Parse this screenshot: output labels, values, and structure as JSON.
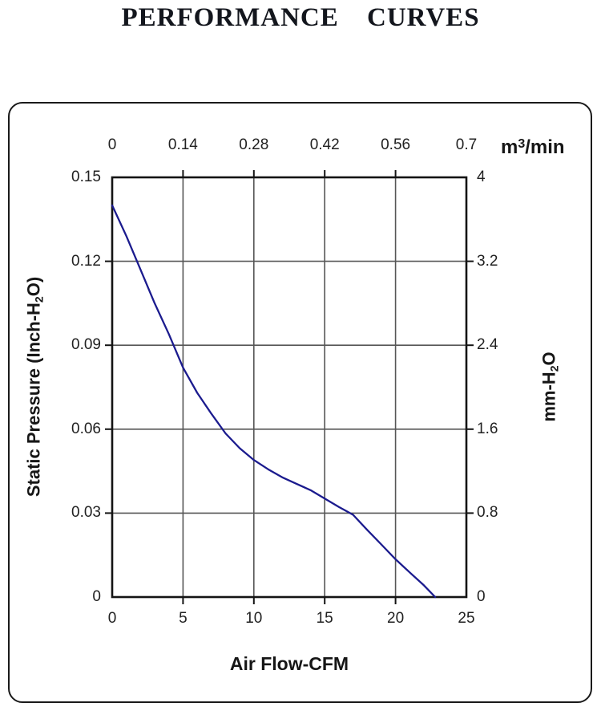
{
  "page": {
    "title": "PERFORMANCE CURVES"
  },
  "chart": {
    "top_axis": {
      "ticks": [
        "0",
        "0.14",
        "0.28",
        "0.42",
        "0.56",
        "0.7"
      ],
      "unit_prefix": "m",
      "unit_sup": "3",
      "unit_suffix": "/min"
    },
    "bottom_axis": {
      "ticks": [
        "0",
        "5",
        "10",
        "15",
        "20",
        "25"
      ],
      "title": "Air Flow-CFM"
    },
    "left_axis": {
      "ticks": [
        "0.15",
        "0.12",
        "0.09",
        "0.06",
        "0.03",
        "0"
      ],
      "title_pre": "Static Pressure (Inch-H",
      "title_sub": "2",
      "title_post": "O)"
    },
    "right_axis": {
      "ticks": [
        "4",
        "3.2",
        "2.4",
        "1.6",
        "0.8",
        "0"
      ],
      "title_pre": "mm-H",
      "title_sub": "2",
      "title_post": "O"
    },
    "colors": {
      "curve": "#1b1b8e",
      "frame": "#141414",
      "grid": "#565656",
      "text": "#212121",
      "box_border": "#1a1a1a",
      "background": "#ffffff"
    }
  },
  "chart_data": {
    "type": "line",
    "title": "PERFORMANCE CURVES",
    "xlabel": "Air Flow-CFM",
    "xlabel_top": "m3/min",
    "ylabel_left": "Static Pressure (Inch-H2O)",
    "ylabel_right": "mm-H2O",
    "xlim": [
      0,
      25
    ],
    "ylim": [
      0,
      0.15
    ],
    "xlim_top": [
      0,
      0.7
    ],
    "ylim_right": [
      0,
      4
    ],
    "grid": true,
    "legend": false,
    "series": [
      {
        "name": "static-pressure-vs-airflow",
        "points": [
          [
            0,
            0.14
          ],
          [
            1,
            0.129
          ],
          [
            2,
            0.117
          ],
          [
            3,
            0.105
          ],
          [
            4,
            0.094
          ],
          [
            5,
            0.082
          ],
          [
            6,
            0.073
          ],
          [
            7,
            0.0655
          ],
          [
            8,
            0.0585
          ],
          [
            9,
            0.0532
          ],
          [
            10,
            0.049
          ],
          [
            11,
            0.0457
          ],
          [
            12,
            0.0428
          ],
          [
            13,
            0.0405
          ],
          [
            14,
            0.0382
          ],
          [
            15,
            0.0352
          ],
          [
            16,
            0.0322
          ],
          [
            17,
            0.0294
          ],
          [
            18,
            0.024
          ],
          [
            19,
            0.0188
          ],
          [
            20,
            0.0135
          ],
          [
            21,
            0.0088
          ],
          [
            22,
            0.0042
          ],
          [
            22.8,
            0
          ]
        ]
      }
    ]
  }
}
